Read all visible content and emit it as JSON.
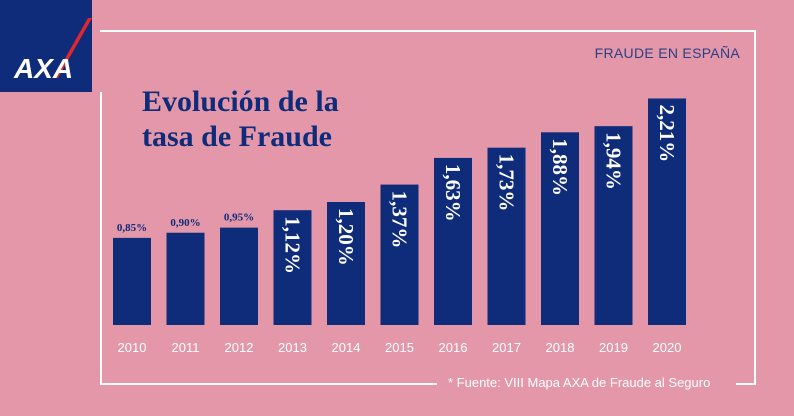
{
  "brand": {
    "name": "AXA",
    "colors": {
      "background": "#e397a9",
      "navy": "#0f2c7a",
      "accent_red": "#e2262b",
      "white": "#ffffff"
    }
  },
  "header": {
    "section_label": "FRAUDE EN ESPAÑA"
  },
  "chart_data": {
    "type": "bar",
    "title_lines": [
      "Evolución de la",
      "tasa de Fraude"
    ],
    "categories": [
      "2010",
      "2011",
      "2012",
      "2013",
      "2014",
      "2015",
      "2016",
      "2017",
      "2018",
      "2019",
      "2020"
    ],
    "values": [
      0.85,
      0.9,
      0.95,
      1.12,
      1.2,
      1.37,
      1.63,
      1.73,
      1.88,
      1.94,
      2.21
    ],
    "value_labels": [
      "0,85%",
      "0,90%",
      "0,95%",
      "1,12%",
      "1,20%",
      "1,37%",
      "1,63%",
      "1,73%",
      "1,88%",
      "1,94%",
      "2,21%"
    ],
    "xlabel": "",
    "ylabel": "",
    "grid": false
  },
  "footer": {
    "source": "* Fuente: VIII Mapa AXA de Fraude al Seguro"
  }
}
